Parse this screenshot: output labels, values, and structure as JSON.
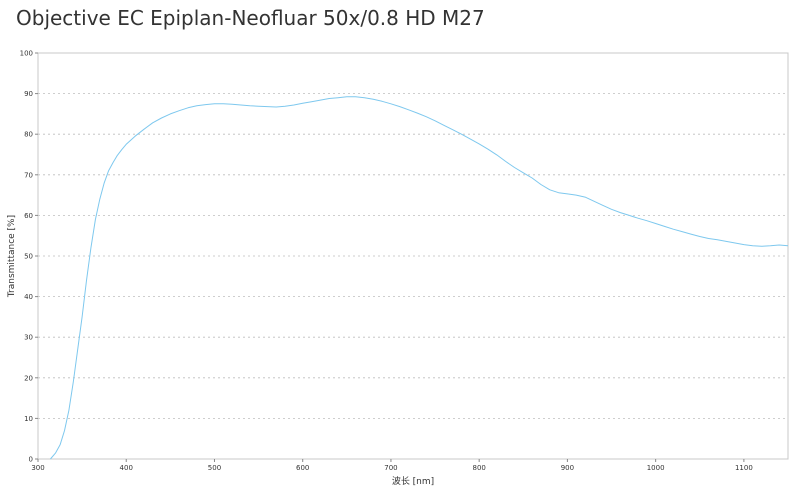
{
  "chart_data": {
    "type": "line",
    "title": "Objective EC Epiplan-Neofluar 50x/0.8 HD M27",
    "xlabel": "波长 [nm]",
    "ylabel": "Transmittance [%]",
    "xlim": [
      300,
      1150
    ],
    "ylim": [
      0,
      100
    ],
    "xticks": [
      300,
      400,
      500,
      600,
      700,
      800,
      900,
      1000,
      1100
    ],
    "yticks": [
      0,
      10,
      20,
      30,
      40,
      50,
      60,
      70,
      80,
      90,
      100
    ],
    "grid": {
      "horizontal": true,
      "vertical": false,
      "style": "dotted"
    },
    "legend": "none",
    "series": [
      {
        "color": "#7ec8ee",
        "x": [
          314,
          320,
          325,
          330,
          335,
          340,
          345,
          350,
          355,
          360,
          365,
          370,
          375,
          380,
          385,
          390,
          395,
          400,
          410,
          420,
          430,
          440,
          450,
          460,
          470,
          480,
          490,
          500,
          510,
          520,
          530,
          540,
          550,
          560,
          570,
          580,
          590,
          600,
          610,
          620,
          630,
          640,
          650,
          660,
          670,
          680,
          690,
          700,
          710,
          720,
          730,
          740,
          750,
          760,
          770,
          780,
          790,
          800,
          810,
          820,
          830,
          840,
          850,
          860,
          870,
          880,
          890,
          900,
          910,
          920,
          930,
          940,
          950,
          960,
          970,
          980,
          990,
          1000,
          1010,
          1020,
          1030,
          1040,
          1050,
          1060,
          1070,
          1080,
          1090,
          1100,
          1110,
          1120,
          1130,
          1140,
          1150
        ],
        "y": [
          0,
          1.5,
          3.5,
          7,
          12,
          19,
          27,
          35,
          44,
          52,
          59,
          64,
          68,
          71,
          73,
          74.8,
          76.2,
          77.5,
          79.5,
          81.2,
          82.8,
          84,
          85,
          85.8,
          86.5,
          87,
          87.3,
          87.5,
          87.5,
          87.4,
          87.2,
          87,
          86.9,
          86.8,
          86.7,
          86.9,
          87.2,
          87.6,
          88,
          88.4,
          88.8,
          89,
          89.2,
          89.2,
          89,
          88.6,
          88.1,
          87.5,
          86.8,
          86,
          85.2,
          84.3,
          83.3,
          82.2,
          81.1,
          80,
          78.8,
          77.6,
          76.3,
          74.9,
          73.3,
          71.8,
          70.5,
          69.2,
          67.6,
          66.3,
          65.6,
          65.3,
          65,
          64.5,
          63.5,
          62.5,
          61.5,
          60.7,
          60,
          59.3,
          58.7,
          58,
          57.3,
          56.6,
          56,
          55.4,
          54.8,
          54.3,
          54,
          53.6,
          53.2,
          52.8,
          52.5,
          52.4,
          52.5,
          52.7,
          52.5
        ]
      }
    ]
  }
}
